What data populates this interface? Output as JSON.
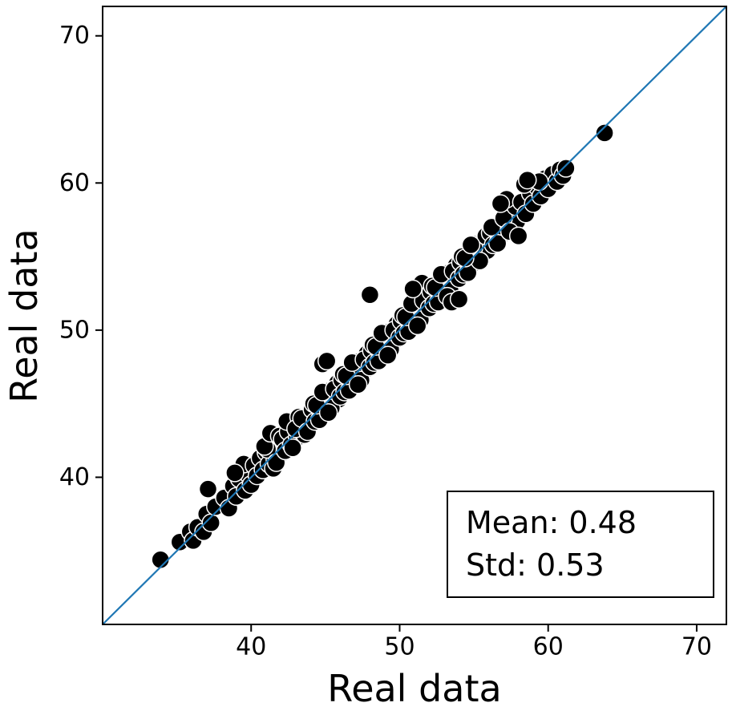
{
  "chart_data": {
    "type": "scatter",
    "title": "",
    "xlabel": "Real data",
    "ylabel": "Real data",
    "xlim": [
      30,
      72
    ],
    "ylim": [
      30,
      72
    ],
    "xticks": [
      40,
      50,
      60,
      70
    ],
    "yticks": [
      40,
      50,
      60,
      70
    ],
    "grid": false,
    "identity_line": {
      "from": [
        30,
        30
      ],
      "to": [
        72,
        72
      ],
      "color": "#1f77b4"
    },
    "marker": {
      "fill_color": "#000000",
      "edge_color": "#ffffff",
      "radius_px": 11
    },
    "annotation": {
      "lines": [
        "Mean: 0.48",
        "Std: 0.53"
      ],
      "mean": 0.48,
      "std": 0.53
    },
    "points": [
      [
        33.9,
        34.4
      ],
      [
        35.2,
        35.6
      ],
      [
        35.9,
        36.3
      ],
      [
        36.1,
        35.7
      ],
      [
        36.4,
        36.6
      ],
      [
        36.8,
        36.3
      ],
      [
        37.0,
        37.5
      ],
      [
        37.3,
        36.9
      ],
      [
        37.6,
        38.0
      ],
      [
        37.1,
        39.2
      ],
      [
        38.2,
        38.6
      ],
      [
        38.5,
        37.9
      ],
      [
        38.8,
        39.4
      ],
      [
        39.0,
        38.7
      ],
      [
        39.2,
        39.9
      ],
      [
        39.4,
        40.6
      ],
      [
        39.6,
        39.1
      ],
      [
        39.8,
        40.2
      ],
      [
        40.0,
        39.5
      ],
      [
        39.5,
        40.9
      ],
      [
        38.9,
        40.3
      ],
      [
        40.2,
        40.8
      ],
      [
        40.4,
        40.1
      ],
      [
        40.6,
        41.3
      ],
      [
        40.8,
        40.5
      ],
      [
        41.0,
        41.7
      ],
      [
        41.2,
        40.9
      ],
      [
        41.4,
        42.0
      ],
      [
        41.6,
        41.2
      ],
      [
        41.8,
        42.4
      ],
      [
        42.0,
        41.6
      ],
      [
        41.1,
        41.9
      ],
      [
        41.5,
        40.6
      ],
      [
        40.9,
        42.1
      ],
      [
        41.3,
        43.0
      ],
      [
        41.7,
        41.0
      ],
      [
        41.9,
        42.8
      ],
      [
        42.1,
        42.6
      ],
      [
        42.3,
        41.8
      ],
      [
        42.5,
        43.1
      ],
      [
        42.7,
        42.2
      ],
      [
        42.9,
        43.5
      ],
      [
        43.1,
        42.7
      ],
      [
        43.3,
        43.9
      ],
      [
        43.5,
        43.0
      ],
      [
        43.7,
        44.2
      ],
      [
        43.9,
        43.4
      ],
      [
        42.4,
        43.8
      ],
      [
        42.8,
        42.0
      ],
      [
        43.2,
        44.1
      ],
      [
        43.6,
        42.9
      ],
      [
        44.0,
        44.5
      ],
      [
        43.0,
        43.3
      ],
      [
        43.4,
        44.0
      ],
      [
        43.8,
        43.1
      ],
      [
        44.1,
        44.6
      ],
      [
        44.3,
        43.8
      ],
      [
        44.5,
        45.1
      ],
      [
        44.7,
        44.2
      ],
      [
        44.9,
        45.4
      ],
      [
        45.1,
        44.6
      ],
      [
        45.3,
        45.9
      ],
      [
        45.5,
        45.0
      ],
      [
        45.7,
        46.2
      ],
      [
        45.9,
        45.3
      ],
      [
        44.2,
        45.0
      ],
      [
        44.6,
        43.9
      ],
      [
        45.0,
        45.6
      ],
      [
        45.4,
        44.7
      ],
      [
        45.8,
        46.4
      ],
      [
        44.4,
        44.9
      ],
      [
        44.8,
        45.8
      ],
      [
        45.2,
        44.4
      ],
      [
        45.6,
        46.0
      ],
      [
        46.0,
        45.5
      ],
      [
        44.8,
        47.7
      ],
      [
        45.1,
        47.9
      ],
      [
        46.1,
        46.6
      ],
      [
        46.3,
        45.8
      ],
      [
        46.5,
        47.1
      ],
      [
        46.7,
        46.2
      ],
      [
        46.9,
        47.4
      ],
      [
        47.1,
        46.7
      ],
      [
        47.3,
        47.9
      ],
      [
        47.5,
        47.0
      ],
      [
        47.7,
        48.2
      ],
      [
        47.9,
        47.4
      ],
      [
        46.2,
        47.0
      ],
      [
        46.6,
        45.9
      ],
      [
        47.0,
        47.6
      ],
      [
        47.4,
        46.6
      ],
      [
        47.8,
        48.4
      ],
      [
        46.4,
        46.9
      ],
      [
        46.8,
        47.8
      ],
      [
        47.2,
        46.3
      ],
      [
        47.6,
        48.0
      ],
      [
        48.0,
        47.5
      ],
      [
        48.0,
        52.4
      ],
      [
        48.1,
        48.6
      ],
      [
        48.3,
        47.8
      ],
      [
        48.5,
        49.1
      ],
      [
        48.7,
        48.2
      ],
      [
        48.9,
        49.4
      ],
      [
        49.1,
        48.6
      ],
      [
        49.3,
        49.9
      ],
      [
        49.5,
        49.0
      ],
      [
        49.7,
        50.2
      ],
      [
        49.9,
        49.4
      ],
      [
        48.2,
        49.0
      ],
      [
        48.6,
        47.9
      ],
      [
        49.0,
        49.6
      ],
      [
        49.4,
        48.7
      ],
      [
        49.8,
        50.4
      ],
      [
        48.4,
        48.9
      ],
      [
        48.8,
        49.8
      ],
      [
        49.2,
        48.3
      ],
      [
        49.6,
        50.0
      ],
      [
        50.0,
        49.5
      ],
      [
        50.1,
        50.6
      ],
      [
        50.3,
        49.8
      ],
      [
        50.5,
        51.1
      ],
      [
        50.7,
        50.2
      ],
      [
        50.9,
        51.4
      ],
      [
        51.1,
        50.6
      ],
      [
        51.3,
        51.9
      ],
      [
        51.5,
        51.0
      ],
      [
        51.7,
        52.2
      ],
      [
        51.9,
        51.4
      ],
      [
        50.2,
        51.0
      ],
      [
        50.6,
        49.9
      ],
      [
        51.0,
        51.6
      ],
      [
        51.4,
        50.7
      ],
      [
        51.8,
        52.4
      ],
      [
        50.4,
        50.9
      ],
      [
        50.8,
        51.8
      ],
      [
        51.2,
        50.3
      ],
      [
        51.6,
        52.0
      ],
      [
        52.0,
        51.5
      ],
      [
        51.5,
        53.2
      ],
      [
        50.9,
        52.8
      ],
      [
        52.1,
        52.6
      ],
      [
        52.3,
        51.8
      ],
      [
        52.5,
        53.1
      ],
      [
        52.7,
        52.2
      ],
      [
        52.9,
        53.4
      ],
      [
        53.1,
        52.6
      ],
      [
        53.3,
        53.9
      ],
      [
        53.5,
        53.0
      ],
      [
        53.7,
        54.2
      ],
      [
        53.9,
        53.4
      ],
      [
        52.2,
        53.0
      ],
      [
        52.6,
        51.9
      ],
      [
        53.0,
        53.6
      ],
      [
        53.4,
        52.7
      ],
      [
        53.8,
        54.4
      ],
      [
        52.4,
        52.9
      ],
      [
        52.8,
        53.8
      ],
      [
        53.2,
        52.3
      ],
      [
        53.6,
        54.0
      ],
      [
        54.0,
        53.5
      ],
      [
        53.5,
        51.9
      ],
      [
        54.0,
        52.1
      ],
      [
        54.1,
        54.6
      ],
      [
        54.3,
        53.8
      ],
      [
        54.5,
        55.1
      ],
      [
        54.7,
        54.2
      ],
      [
        54.9,
        55.4
      ],
      [
        55.1,
        54.6
      ],
      [
        55.3,
        55.9
      ],
      [
        55.5,
        55.0
      ],
      [
        55.7,
        56.2
      ],
      [
        55.9,
        55.4
      ],
      [
        54.2,
        55.0
      ],
      [
        54.6,
        53.9
      ],
      [
        55.0,
        55.6
      ],
      [
        55.4,
        54.7
      ],
      [
        55.8,
        56.4
      ],
      [
        54.4,
        54.9
      ],
      [
        54.8,
        55.8
      ],
      [
        56.1,
        56.6
      ],
      [
        56.3,
        55.8
      ],
      [
        56.5,
        57.1
      ],
      [
        56.7,
        56.2
      ],
      [
        56.9,
        57.4
      ],
      [
        57.1,
        56.6
      ],
      [
        57.3,
        57.9
      ],
      [
        57.5,
        57.0
      ],
      [
        57.7,
        58.2
      ],
      [
        57.9,
        57.4
      ],
      [
        56.2,
        57.0
      ],
      [
        56.6,
        55.9
      ],
      [
        57.0,
        57.6
      ],
      [
        57.4,
        56.7
      ],
      [
        57.8,
        58.4
      ],
      [
        57.2,
        58.9
      ],
      [
        56.8,
        58.6
      ],
      [
        58.0,
        56.4
      ],
      [
        58.2,
        58.7
      ],
      [
        58.5,
        57.9
      ],
      [
        58.8,
        59.3
      ],
      [
        59.0,
        58.6
      ],
      [
        59.2,
        59.8
      ],
      [
        59.5,
        59.1
      ],
      [
        59.8,
        60.3
      ],
      [
        60.0,
        59.6
      ],
      [
        60.3,
        60.6
      ],
      [
        60.6,
        60.1
      ],
      [
        58.4,
        59.9
      ],
      [
        59.4,
        60.1
      ],
      [
        60.8,
        60.9
      ],
      [
        61.0,
        60.5
      ],
      [
        58.6,
        60.2
      ],
      [
        61.2,
        61.0
      ],
      [
        63.8,
        63.4
      ]
    ]
  }
}
